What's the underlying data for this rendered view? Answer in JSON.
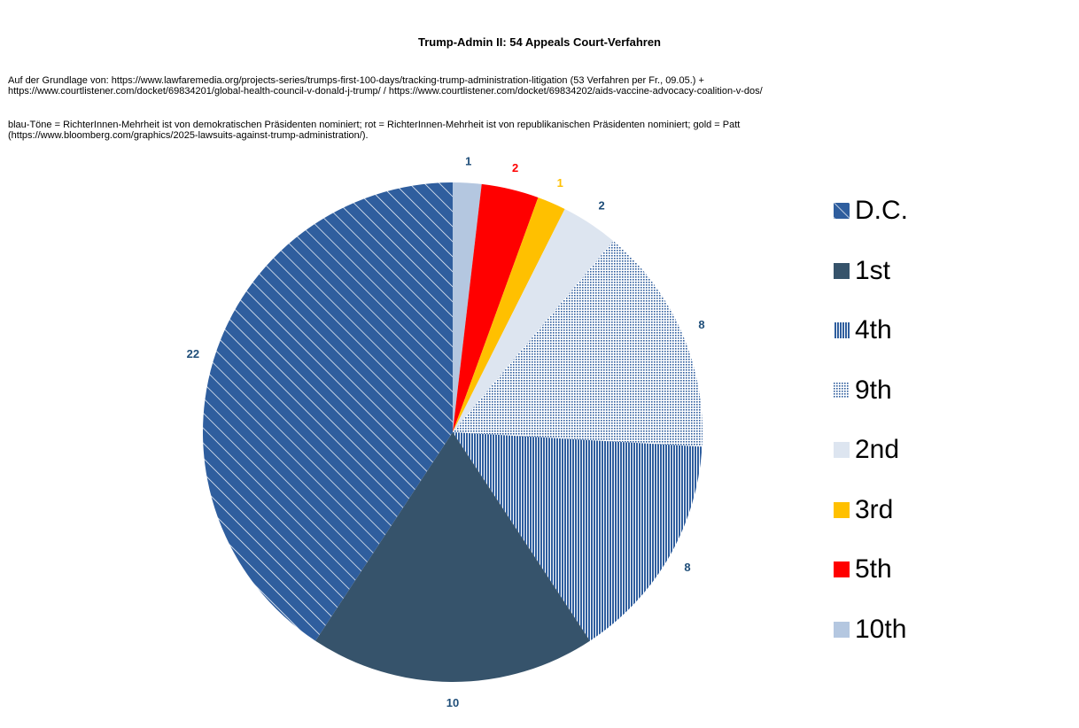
{
  "chart_data": {
    "type": "pie",
    "title": "Trump-Admin II: 54 Appeals Court-Verfahren",
    "notes": {
      "source_line1": "Auf der Grundlage von: https://www.lawfaremedia.org/projects-series/trumps-first-100-days/tracking-trump-administration-litigation (53 Verfahren per Fr., 09.05.) +",
      "source_line2": "https://www.courtlistener.com/docket/69834201/global-health-council-v-donald-j-trump/ / https://www.courtlistener.com/docket/69834202/aids-vaccine-advocacy-coalition-v-dos/",
      "legend_line1": "blau-Töne = RichterInnen-Mehrheit ist von demokratischen Präsidenten nominiert; rot = RichterInnen-Mehrheit ist von republikanischen Präsidenten nominiert; gold = Patt",
      "legend_line2": "(https://www.bloomberg.com/graphics/2025-lawsuits-against-trump-administration/)."
    },
    "start_angle_deg": -90,
    "direction": "clockwise",
    "order_in_pie": [
      "10th",
      "5th",
      "3rd",
      "2nd",
      "9th",
      "4th",
      "1st",
      "D.C."
    ],
    "slices": [
      {
        "name": "D.C.",
        "value": 22,
        "color": "#2f5e9e",
        "pattern": "diagonal",
        "label_color": "#1f4e79"
      },
      {
        "name": "1st",
        "value": 10,
        "color": "#36536b",
        "pattern": "solid",
        "label_color": "#1f4e79"
      },
      {
        "name": "4th",
        "value": 8,
        "color": "#2f5e9e",
        "pattern": "vertical",
        "label_color": "#1f4e79"
      },
      {
        "name": "9th",
        "value": 8,
        "color": "#2f5e9e",
        "pattern": "dots",
        "label_color": "#1f4e79"
      },
      {
        "name": "2nd",
        "value": 2,
        "color": "#dde5f0",
        "pattern": "solid",
        "label_color": "#1f4e79"
      },
      {
        "name": "3rd",
        "value": 1,
        "color": "#ffc000",
        "pattern": "solid",
        "label_color": "#ffc000"
      },
      {
        "name": "5th",
        "value": 2,
        "color": "#ff0000",
        "pattern": "solid",
        "label_color": "#ff0000"
      },
      {
        "name": "10th",
        "value": 1,
        "color": "#b4c7e0",
        "pattern": "solid",
        "label_color": "#1f4e79"
      }
    ],
    "legend_placement": "right"
  }
}
